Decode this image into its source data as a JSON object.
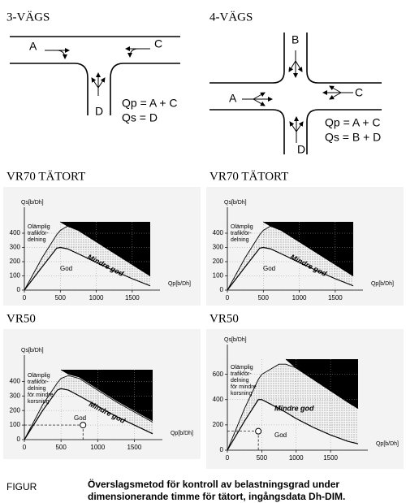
{
  "diagrams": [
    {
      "title": "3-VÄGS",
      "labels": [
        "A",
        "C",
        "D"
      ],
      "formulas": [
        "Qp = A + C",
        "Qs = D"
      ]
    },
    {
      "title": "4-VÄGS",
      "labels": [
        "B",
        "A",
        "C",
        "D"
      ],
      "formulas": [
        "Qp = A + C",
        "Qs = B + D"
      ]
    }
  ],
  "chart_data": [
    {
      "type": "area",
      "title": "VR70 TÄTORT",
      "x_label": "Qp[b/Dh]",
      "y_label": "Qs[b/Dh]",
      "region_labels": {
        "unsuitable": [
          "Olämplig",
          "trafikför-",
          "delning"
        ],
        "fair": "Mindre god",
        "good": "God"
      },
      "x": [
        0,
        250,
        450,
        500,
        600,
        750,
        1000,
        1250,
        1500,
        1750
      ],
      "series": [
        {
          "color": "#000000",
          "values": [
            0,
            165,
            295,
            300,
            290,
            255,
            195,
            135,
            80,
            30
          ]
        },
        {
          "color": "#c8c8c8",
          "values": [
            0,
            230,
            390,
            420,
            450,
            420,
            340,
            260,
            180,
            100
          ]
        },
        {
          "color": "#000000",
          "values": [
            null,
            null,
            null,
            480,
            450,
            420,
            340,
            260,
            180,
            100
          ]
        }
      ],
      "xlim": [
        0,
        1750
      ],
      "ylim": [
        0,
        480
      ],
      "xticks": [
        0,
        500,
        1000,
        1500
      ],
      "yticks": [
        0,
        100,
        200,
        300,
        400
      ],
      "grid": true
    },
    {
      "type": "area",
      "title": "VR70 TÄTORT",
      "x_label": "Qp[b/Dh]",
      "y_label": "Qs[b/Dh]",
      "region_labels": {
        "unsuitable": [
          "Olämplig",
          "trafikför-",
          "delning"
        ],
        "fair": "Mindre god",
        "good": "God"
      },
      "x": [
        0,
        250,
        450,
        500,
        600,
        750,
        1000,
        1250,
        1500,
        1750
      ],
      "series": [
        {
          "color": "#000000",
          "values": [
            0,
            165,
            295,
            300,
            290,
            255,
            195,
            135,
            80,
            30
          ]
        },
        {
          "color": "#c8c8c8",
          "values": [
            0,
            230,
            390,
            420,
            450,
            420,
            340,
            260,
            180,
            100
          ]
        },
        {
          "color": "#000000",
          "values": [
            null,
            null,
            null,
            480,
            450,
            420,
            340,
            260,
            180,
            100
          ]
        }
      ],
      "xlim": [
        0,
        1750
      ],
      "ylim": [
        0,
        480
      ],
      "xticks": [
        0,
        500,
        1000,
        1500
      ],
      "yticks": [
        0,
        100,
        200,
        300,
        400
      ],
      "grid": true
    },
    {
      "type": "area",
      "title": "VR50",
      "x_label": "Qp[b/Dh]",
      "y_label": "Qs[b/Dh]",
      "region_labels": {
        "unsuitable": [
          "Olämplig",
          "trafikför-",
          "delning",
          "för mindre",
          "korsning"
        ],
        "fair": "Mindre god",
        "good": "God"
      },
      "x": [
        0,
        250,
        450,
        500,
        600,
        750,
        1000,
        1250,
        1500,
        1750
      ],
      "series": [
        {
          "color": "#000000",
          "values": [
            0,
            200,
            340,
            350,
            340,
            300,
            230,
            160,
            100,
            40
          ]
        },
        {
          "color": "#c8c8c8",
          "values": [
            0,
            240,
            390,
            420,
            440,
            420,
            340,
            260,
            190,
            120
          ]
        },
        {
          "color": "#000000",
          "values": [
            null,
            null,
            null,
            480,
            450,
            430,
            350,
            270,
            200,
            130
          ]
        }
      ],
      "point": {
        "x": 800,
        "y": 100
      },
      "xlim": [
        0,
        1750
      ],
      "ylim": [
        0,
        480
      ],
      "xticks": [
        0,
        500,
        1000,
        1500
      ],
      "yticks": [
        0,
        100,
        200,
        300,
        400
      ],
      "grid": true
    },
    {
      "type": "area",
      "title": "VR50",
      "x_label": "Qp[b/Dh]",
      "y_label": "Qs[b/Dh]",
      "region_labels": {
        "unsuitable": [
          "Olämplig",
          "trafikför-",
          "delning",
          "för mindre",
          "korsning"
        ],
        "fair": "Mindre god",
        "good": "God"
      },
      "x": [
        0,
        250,
        450,
        500,
        750,
        850,
        1000,
        1250,
        1500,
        1750,
        1900
      ],
      "series": [
        {
          "color": "#000000",
          "values": [
            0,
            230,
            400,
            400,
            330,
            300,
            250,
            180,
            120,
            70,
            50
          ]
        },
        {
          "color": "#c8c8c8",
          "values": [
            0,
            330,
            560,
            600,
            680,
            680,
            650,
            560,
            470,
            380,
            330
          ]
        },
        {
          "color": "#000000",
          "values": [
            null,
            null,
            null,
            null,
            null,
            720,
            650,
            560,
            470,
            380,
            330
          ]
        }
      ],
      "point": {
        "x": 450,
        "y": 150
      },
      "xlim": [
        0,
        1900
      ],
      "ylim": [
        0,
        720
      ],
      "xticks": [
        0,
        500,
        1000,
        1500
      ],
      "yticks": [
        0,
        200,
        400,
        600
      ],
      "grid": true
    }
  ],
  "caption": {
    "label": "FIGUR",
    "lines": [
      "Överslagsmetod för kontroll av belastningsgrad under",
      "dimensionerande timme för tätort, ingångsdata Dh-DIM."
    ]
  }
}
